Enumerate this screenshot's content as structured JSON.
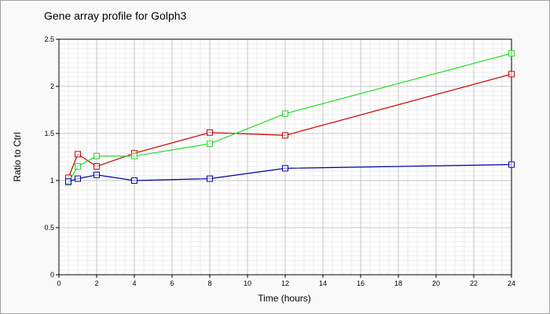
{
  "chart_data": {
    "type": "line",
    "title": "Gene array profile for Golph3",
    "xlabel": "Time (hours)",
    "ylabel": "Ratio to Ctrl",
    "xlim": [
      0,
      24
    ],
    "ylim": [
      0,
      2.5
    ],
    "x_ticks": [
      "0",
      "2",
      "4",
      "6",
      "8",
      "10",
      "12",
      "14",
      "16",
      "18",
      "20",
      "22",
      "24"
    ],
    "y_ticks": [
      "0",
      "0.5",
      "1",
      "1.5",
      "2",
      "2.5"
    ],
    "grid": true,
    "legend": "none",
    "series": [
      {
        "color": "#cc0000",
        "x": [
          0.5,
          1,
          2,
          4,
          8,
          12,
          24
        ],
        "y": [
          1.03,
          1.28,
          1.15,
          1.29,
          1.51,
          1.48,
          2.13
        ]
      },
      {
        "color": "#22dd22",
        "x": [
          0.5,
          1,
          2,
          4,
          8,
          12,
          24
        ],
        "y": [
          0.98,
          1.15,
          1.26,
          1.26,
          1.39,
          1.71,
          2.35
        ]
      },
      {
        "color": "#0000aa",
        "x": [
          0.5,
          1,
          2,
          4,
          8,
          12,
          24
        ],
        "y": [
          0.99,
          1.02,
          1.06,
          1.0,
          1.02,
          1.13,
          1.17
        ]
      }
    ]
  }
}
